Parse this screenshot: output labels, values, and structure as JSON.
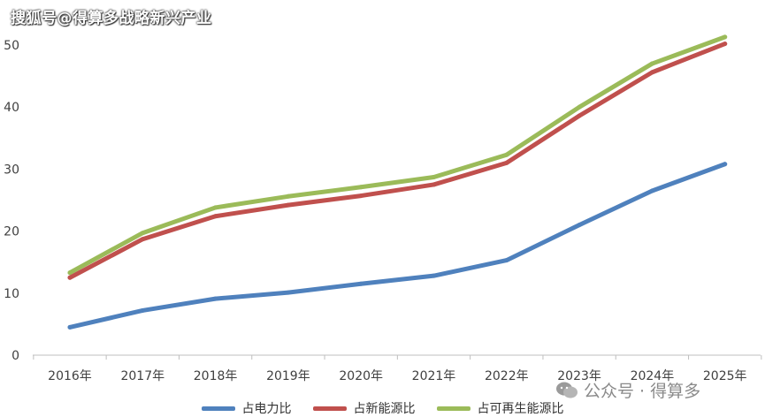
{
  "watermark_top": "搜狐号@得算多战略新兴产业",
  "watermark_bottom": "公众号 · 得算多",
  "chart_data": {
    "type": "line",
    "categories": [
      "2016年",
      "2017年",
      "2018年",
      "2019年",
      "2020年",
      "2021年",
      "2022年",
      "2023年",
      "2024年",
      "2025年"
    ],
    "ylim": [
      0,
      55
    ],
    "yticks": [
      0,
      10,
      20,
      30,
      40,
      50
    ],
    "grid": false,
    "legend": "bottom",
    "series": [
      {
        "name": "占电力比",
        "color": "#4f81bd",
        "values": [
          4.5,
          7.2,
          9.1,
          10.1,
          11.5,
          12.8,
          15.3,
          21.0,
          26.5,
          30.8
        ]
      },
      {
        "name": "占新能源比",
        "color": "#c0504d",
        "values": [
          12.5,
          18.7,
          22.4,
          24.2,
          25.7,
          27.5,
          31.0,
          38.6,
          45.6,
          50.2
        ]
      },
      {
        "name": "占可再生能源比",
        "color": "#9bbb59",
        "values": [
          13.3,
          19.7,
          23.8,
          25.6,
          27.1,
          28.7,
          32.3,
          40.0,
          47.0,
          51.3
        ]
      }
    ]
  }
}
